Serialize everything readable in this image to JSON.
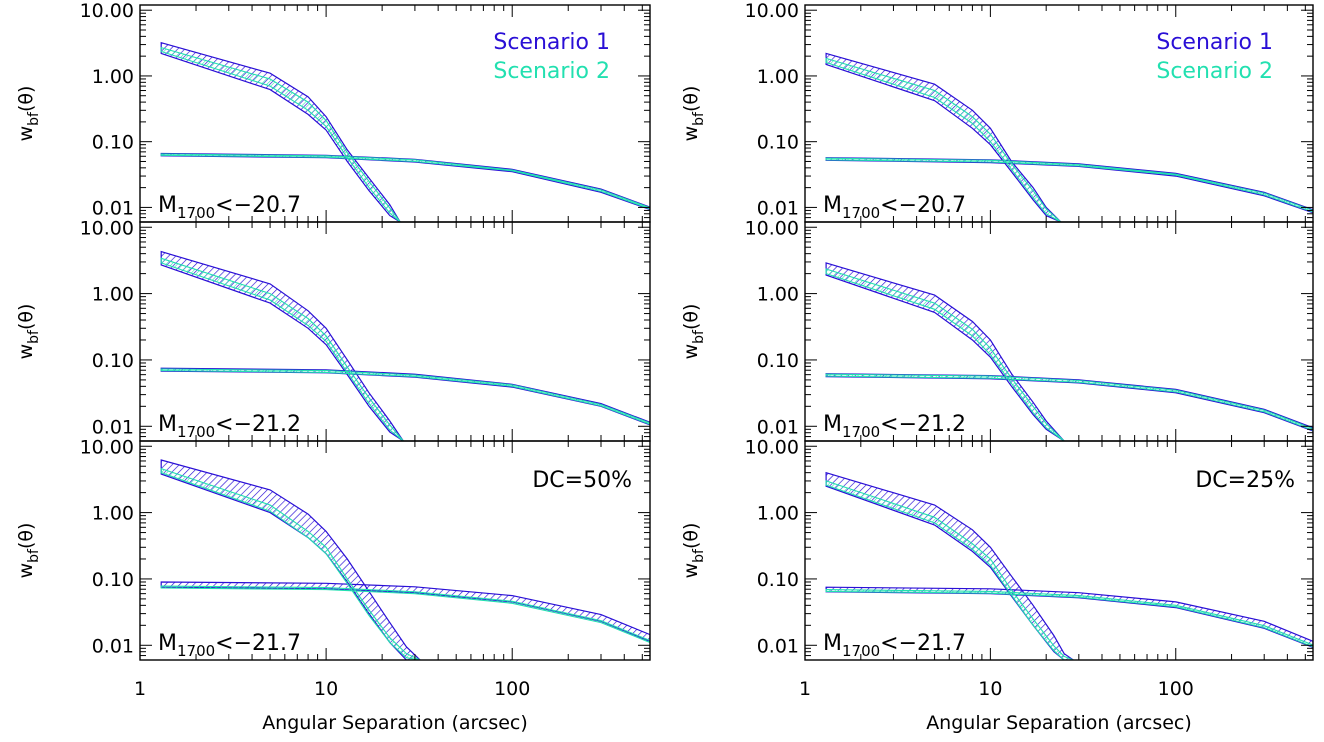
{
  "chart_data": {
    "type": "line",
    "layout": "3 rows x 2 columns of panels with shared x axes",
    "x_scale": "log",
    "y_scale": "log",
    "xlim": [
      1,
      550
    ],
    "ylim": [
      0.006,
      12
    ],
    "xlabel": "Angular Separation (arcsec)",
    "ylabel": "w_bf(θ)",
    "x_ticks": [
      "1",
      "10",
      "100"
    ],
    "y_ticks": [
      "0.01",
      "0.10",
      "1.00",
      "10.00"
    ],
    "legend": {
      "placement": "top-right",
      "entries": [
        {
          "name": "Scenario 1",
          "color": "#2a0fd6"
        },
        {
          "name": "Scenario 2",
          "color": "#22e0b0"
        }
      ]
    },
    "panels": [
      {
        "row": 0,
        "col": 0,
        "label": "M1700<−20.7",
        "label_main": "M",
        "label_sub": "1700",
        "label_rest": "<−20.7",
        "corner_text": "",
        "show_legend": true,
        "one_halo": {
          "scenario1": [
            [
              1.3,
              2.2,
              3.2
            ],
            [
              5,
              0.62,
              1.1
            ],
            [
              8,
              0.26,
              0.48
            ],
            [
              10,
              0.15,
              0.24
            ],
            [
              13,
              0.05,
              0.075
            ],
            [
              17,
              0.018,
              0.028
            ],
            [
              22,
              0.0075,
              0.011
            ],
            [
              25,
              0.006,
              0.006
            ]
          ],
          "scenario2": [
            [
              1.3,
              2.35,
              2.7
            ],
            [
              5,
              0.7,
              0.9
            ],
            [
              8,
              0.3,
              0.4
            ],
            [
              10,
              0.17,
              0.21
            ],
            [
              13,
              0.057,
              0.068
            ],
            [
              17,
              0.02,
              0.025
            ],
            [
              22,
              0.0082,
              0.0098
            ],
            [
              25,
              0.006,
              0.006
            ]
          ]
        },
        "two_halo": {
          "scenario1": [
            [
              1.3,
              0.061,
              0.066
            ],
            [
              10,
              0.057,
              0.062
            ],
            [
              30,
              0.049,
              0.054
            ],
            [
              100,
              0.035,
              0.038
            ],
            [
              300,
              0.017,
              0.019
            ],
            [
              550,
              0.0093,
              0.0101
            ]
          ],
          "scenario2": [
            [
              1.3,
              0.062,
              0.065
            ],
            [
              10,
              0.058,
              0.061
            ],
            [
              30,
              0.05,
              0.053
            ],
            [
              100,
              0.036,
              0.037
            ],
            [
              300,
              0.0175,
              0.0185
            ],
            [
              550,
              0.0095,
              0.0099
            ]
          ]
        }
      },
      {
        "row": 0,
        "col": 1,
        "label": "M1700<−20.7",
        "label_main": "M",
        "label_sub": "1700",
        "label_rest": "<−20.7",
        "corner_text": "",
        "show_legend": true,
        "one_halo": {
          "scenario1": [
            [
              1.3,
              1.5,
              2.2
            ],
            [
              5,
              0.42,
              0.75
            ],
            [
              8,
              0.16,
              0.3
            ],
            [
              10,
              0.09,
              0.16
            ],
            [
              13,
              0.035,
              0.05
            ],
            [
              17,
              0.013,
              0.02
            ],
            [
              20,
              0.0075,
              0.01
            ],
            [
              24,
              0.006,
              0.006
            ]
          ],
          "scenario2": [
            [
              1.3,
              1.6,
              1.85
            ],
            [
              5,
              0.47,
              0.6
            ],
            [
              8,
              0.19,
              0.24
            ],
            [
              10,
              0.1,
              0.13
            ],
            [
              13,
              0.038,
              0.046
            ],
            [
              17,
              0.014,
              0.018
            ],
            [
              20,
              0.008,
              0.0095
            ],
            [
              24,
              0.006,
              0.006
            ]
          ]
        },
        "two_halo": {
          "scenario1": [
            [
              1.3,
              0.052,
              0.057
            ],
            [
              10,
              0.048,
              0.053
            ],
            [
              30,
              0.042,
              0.046
            ],
            [
              100,
              0.03,
              0.033
            ],
            [
              300,
              0.015,
              0.017
            ],
            [
              550,
              0.0083,
              0.0092
            ]
          ],
          "scenario2": [
            [
              1.3,
              0.053,
              0.056
            ],
            [
              10,
              0.049,
              0.052
            ],
            [
              30,
              0.043,
              0.045
            ],
            [
              100,
              0.031,
              0.032
            ],
            [
              300,
              0.0155,
              0.0165
            ],
            [
              550,
              0.0085,
              0.009
            ]
          ]
        }
      },
      {
        "row": 1,
        "col": 0,
        "label": "M1700<−21.2",
        "label_main": "M",
        "label_sub": "1700",
        "label_rest": "<−21.2",
        "corner_text": "",
        "show_legend": false,
        "one_halo": {
          "scenario1": [
            [
              1.3,
              2.7,
              4.3
            ],
            [
              5,
              0.72,
              1.4
            ],
            [
              8,
              0.3,
              0.55
            ],
            [
              10,
              0.17,
              0.3
            ],
            [
              13,
              0.06,
              0.1
            ],
            [
              17,
              0.02,
              0.032
            ],
            [
              22,
              0.0082,
              0.012
            ],
            [
              26,
              0.006,
              0.006
            ]
          ],
          "scenario2": [
            [
              1.3,
              2.9,
              3.4
            ],
            [
              5,
              0.8,
              1.0
            ],
            [
              8,
              0.33,
              0.42
            ],
            [
              10,
              0.19,
              0.23
            ],
            [
              13,
              0.065,
              0.078
            ],
            [
              17,
              0.022,
              0.027
            ],
            [
              22,
              0.0088,
              0.0105
            ],
            [
              26,
              0.006,
              0.006
            ]
          ]
        },
        "two_halo": {
          "scenario1": [
            [
              1.3,
              0.068,
              0.075
            ],
            [
              10,
              0.064,
              0.071
            ],
            [
              30,
              0.055,
              0.061
            ],
            [
              100,
              0.039,
              0.043
            ],
            [
              300,
              0.02,
              0.022
            ],
            [
              550,
              0.0105,
              0.0115
            ]
          ],
          "scenario2": [
            [
              1.3,
              0.069,
              0.073
            ],
            [
              10,
              0.065,
              0.069
            ],
            [
              30,
              0.056,
              0.059
            ],
            [
              100,
              0.04,
              0.042
            ],
            [
              300,
              0.0203,
              0.0213
            ],
            [
              550,
              0.0107,
              0.0112
            ]
          ]
        }
      },
      {
        "row": 1,
        "col": 1,
        "label": "M1700<−21.2",
        "label_main": "M",
        "label_sub": "1700",
        "label_rest": "<−21.2",
        "corner_text": "",
        "show_legend": false,
        "one_halo": {
          "scenario1": [
            [
              1.3,
              1.9,
              2.9
            ],
            [
              5,
              0.52,
              0.95
            ],
            [
              8,
              0.2,
              0.38
            ],
            [
              10,
              0.11,
              0.2
            ],
            [
              13,
              0.04,
              0.062
            ],
            [
              17,
              0.015,
              0.023
            ],
            [
              20,
              0.009,
              0.012
            ],
            [
              25,
              0.006,
              0.006
            ]
          ],
          "scenario2": [
            [
              1.3,
              2.0,
              2.35
            ],
            [
              5,
              0.58,
              0.72
            ],
            [
              8,
              0.23,
              0.29
            ],
            [
              10,
              0.12,
              0.15
            ],
            [
              13,
              0.044,
              0.053
            ],
            [
              17,
              0.016,
              0.02
            ],
            [
              20,
              0.0095,
              0.011
            ],
            [
              25,
              0.006,
              0.006
            ]
          ]
        },
        "two_halo": {
          "scenario1": [
            [
              1.3,
              0.056,
              0.062
            ],
            [
              10,
              0.052,
              0.058
            ],
            [
              30,
              0.045,
              0.05
            ],
            [
              100,
              0.032,
              0.036
            ],
            [
              300,
              0.016,
              0.018
            ],
            [
              550,
              0.0085,
              0.0095
            ]
          ],
          "scenario2": [
            [
              1.3,
              0.057,
              0.061
            ],
            [
              10,
              0.053,
              0.057
            ],
            [
              30,
              0.046,
              0.049
            ],
            [
              100,
              0.033,
              0.035
            ],
            [
              300,
              0.0165,
              0.0175
            ],
            [
              550,
              0.0087,
              0.0092
            ]
          ]
        }
      },
      {
        "row": 2,
        "col": 0,
        "label": "M1700<−21.7",
        "label_main": "M",
        "label_sub": "1700",
        "label_rest": "<−21.7",
        "corner_text": "DC=50%",
        "show_legend": false,
        "one_halo": {
          "scenario1": [
            [
              1.3,
              3.8,
              6.2
            ],
            [
              5,
              1.0,
              2.2
            ],
            [
              8,
              0.42,
              0.95
            ],
            [
              10,
              0.24,
              0.52
            ],
            [
              13,
              0.09,
              0.2
            ],
            [
              17,
              0.03,
              0.065
            ],
            [
              22,
              0.011,
              0.022
            ],
            [
              27,
              0.006,
              0.0095
            ],
            [
              32,
              0.006,
              0.006
            ]
          ],
          "scenario2": [
            [
              1.3,
              4.0,
              4.6
            ],
            [
              5,
              1.05,
              1.3
            ],
            [
              8,
              0.42,
              0.52
            ],
            [
              10,
              0.24,
              0.3
            ],
            [
              13,
              0.085,
              0.1
            ],
            [
              17,
              0.028,
              0.034
            ],
            [
              22,
              0.011,
              0.013
            ],
            [
              27,
              0.0065,
              0.0075
            ],
            [
              32,
              0.006,
              0.006
            ]
          ]
        },
        "two_halo": {
          "scenario1": [
            [
              1.3,
              0.075,
              0.09
            ],
            [
              10,
              0.071,
              0.086
            ],
            [
              30,
              0.062,
              0.076
            ],
            [
              100,
              0.045,
              0.056
            ],
            [
              300,
              0.023,
              0.029
            ],
            [
              550,
              0.0115,
              0.0145
            ]
          ],
          "scenario2": [
            [
              1.3,
              0.073,
              0.078
            ],
            [
              10,
              0.069,
              0.074
            ],
            [
              30,
              0.06,
              0.064
            ],
            [
              100,
              0.043,
              0.046
            ],
            [
              300,
              0.022,
              0.0235
            ],
            [
              550,
              0.011,
              0.0118
            ]
          ]
        }
      },
      {
        "row": 2,
        "col": 1,
        "label": "M1700<−21.7",
        "label_main": "M",
        "label_sub": "1700",
        "label_rest": "<−21.7",
        "corner_text": "DC=25%",
        "show_legend": false,
        "one_halo": {
          "scenario1": [
            [
              1.3,
              2.5,
              4.0
            ],
            [
              5,
              0.65,
              1.3
            ],
            [
              8,
              0.26,
              0.55
            ],
            [
              10,
              0.15,
              0.3
            ],
            [
              13,
              0.055,
              0.11
            ],
            [
              17,
              0.02,
              0.04
            ],
            [
              22,
              0.008,
              0.014
            ],
            [
              25,
              0.006,
              0.0075
            ],
            [
              28,
              0.006,
              0.006
            ]
          ],
          "scenario2": [
            [
              1.3,
              2.6,
              3.0
            ],
            [
              5,
              0.7,
              0.85
            ],
            [
              8,
              0.28,
              0.34
            ],
            [
              10,
              0.16,
              0.2
            ],
            [
              13,
              0.057,
              0.068
            ],
            [
              17,
              0.02,
              0.025
            ],
            [
              22,
              0.0083,
              0.0098
            ],
            [
              25,
              0.006,
              0.0068
            ],
            [
              28,
              0.006,
              0.006
            ]
          ]
        },
        "two_halo": {
          "scenario1": [
            [
              1.3,
              0.064,
              0.075
            ],
            [
              10,
              0.06,
              0.071
            ],
            [
              30,
              0.052,
              0.062
            ],
            [
              100,
              0.037,
              0.045
            ],
            [
              300,
              0.018,
              0.023
            ],
            [
              550,
              0.0093,
              0.0115
            ]
          ],
          "scenario2": [
            [
              1.3,
              0.065,
              0.069
            ],
            [
              10,
              0.061,
              0.065
            ],
            [
              30,
              0.053,
              0.056
            ],
            [
              100,
              0.038,
              0.04
            ],
            [
              300,
              0.0185,
              0.0197
            ],
            [
              550,
              0.0095,
              0.0101
            ]
          ]
        }
      }
    ]
  }
}
